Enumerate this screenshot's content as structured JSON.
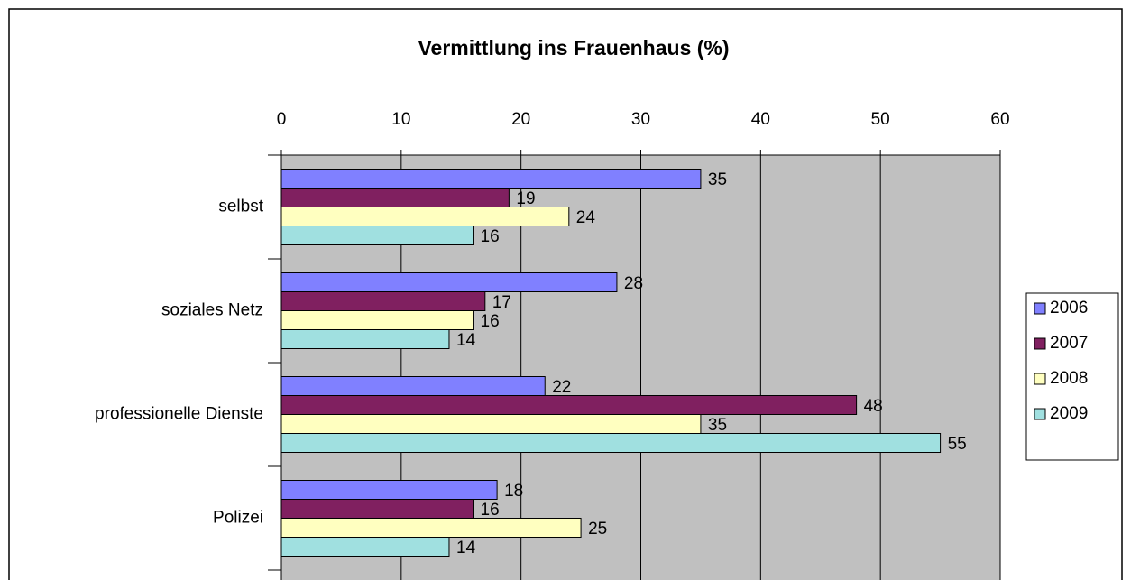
{
  "chart_data": {
    "type": "bar",
    "orientation": "horizontal",
    "title": "Vermittlung ins Frauenhaus (%)",
    "categories": [
      "selbst",
      "soziales Netz",
      "professionelle Dienste",
      "Polizei"
    ],
    "series": [
      {
        "name": "2006",
        "color": "#8080ff",
        "values": [
          35,
          28,
          22,
          18
        ]
      },
      {
        "name": "2007",
        "color": "#802060",
        "values": [
          19,
          17,
          48,
          16
        ]
      },
      {
        "name": "2008",
        "color": "#ffffc0",
        "values": [
          24,
          16,
          35,
          25
        ]
      },
      {
        "name": "2009",
        "color": "#a0e0e0",
        "values": [
          16,
          14,
          55,
          14
        ]
      }
    ],
    "xlim": [
      0,
      60
    ],
    "xticks": [
      0,
      10,
      20,
      30,
      40,
      50,
      60
    ],
    "grid": true,
    "legend": "right"
  }
}
